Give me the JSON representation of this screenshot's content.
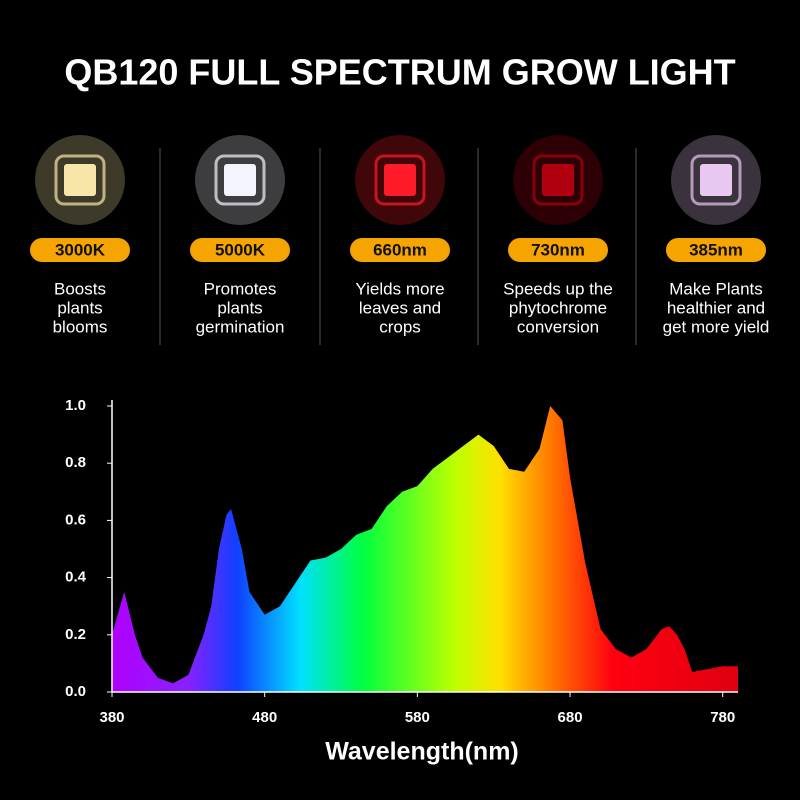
{
  "title": "QB120 FULL SPECTRUM GROW LIGHT",
  "features": [
    {
      "label": "3000K",
      "color": "#f7e6a8",
      "lines": [
        "Boosts",
        "plants",
        "blooms"
      ]
    },
    {
      "label": "5000K",
      "color": "#f4f4ff",
      "lines": [
        "Promotes",
        "plants",
        "germination"
      ]
    },
    {
      "label": "660nm",
      "color": "#ff1a2a",
      "lines": [
        "Yields more",
        "leaves and",
        "crops"
      ]
    },
    {
      "label": "730nm",
      "color": "#b00010",
      "lines": [
        "Speeds up the",
        "phytochrome",
        "conversion"
      ]
    },
    {
      "label": "385nm",
      "color": "#e8c8f0",
      "lines": [
        "Make Plants",
        "healthier and",
        "get more yield"
      ]
    }
  ],
  "chart_data": {
    "type": "area",
    "x_label": "Wavelength(nm)",
    "x": [
      380,
      388,
      395,
      400,
      410,
      420,
      430,
      440,
      445,
      450,
      455,
      458,
      465,
      470,
      480,
      490,
      500,
      510,
      520,
      530,
      540,
      550,
      560,
      570,
      580,
      590,
      600,
      610,
      620,
      630,
      640,
      650,
      660,
      667,
      675,
      680,
      690,
      700,
      710,
      720,
      730,
      740,
      745,
      750,
      755,
      760,
      770,
      780,
      790
    ],
    "y": [
      0.2,
      0.35,
      0.2,
      0.12,
      0.05,
      0.03,
      0.06,
      0.2,
      0.3,
      0.5,
      0.62,
      0.64,
      0.5,
      0.35,
      0.27,
      0.3,
      0.38,
      0.46,
      0.47,
      0.5,
      0.55,
      0.57,
      0.65,
      0.7,
      0.72,
      0.78,
      0.82,
      0.86,
      0.9,
      0.86,
      0.78,
      0.77,
      0.85,
      1.0,
      0.95,
      0.75,
      0.45,
      0.22,
      0.15,
      0.12,
      0.15,
      0.22,
      0.23,
      0.2,
      0.15,
      0.07,
      0.08,
      0.09,
      0.09
    ],
    "xlim": [
      380,
      790
    ],
    "ylim": [
      0,
      1.0
    ],
    "xticks": [
      380,
      480,
      580,
      680,
      780
    ],
    "yticks": [
      {
        "value": 0,
        "label": "0.0"
      },
      0.2,
      0.4,
      0.6,
      0.8,
      {
        "value": 1,
        "label": "1.0"
      }
    ]
  }
}
